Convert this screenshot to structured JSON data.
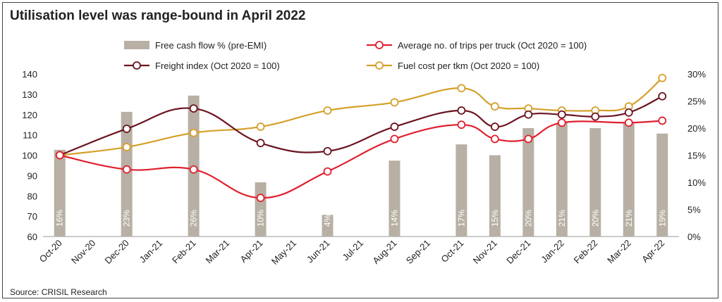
{
  "header": {
    "title": "Utilisation level was range-bound in April 2022"
  },
  "footer": {
    "source": "Source: CRISIL Research"
  },
  "chart_data": {
    "type": "bar",
    "title": "Utilisation level was range-bound in April 2022",
    "categories": [
      "Oct-20",
      "Nov-20",
      "Dec-20",
      "Jan-21",
      "Feb-21",
      "Mar-21",
      "Apr-21",
      "May-21",
      "Jun-21",
      "Jul-21",
      "Aug-21",
      "Sep-21",
      "Oct-21",
      "Nov-21",
      "Dec-21",
      "Jan-22",
      "Feb-22",
      "Mar-22",
      "Apr-22"
    ],
    "y_left": {
      "range": [
        60,
        140
      ],
      "ticks": [
        60,
        70,
        80,
        90,
        100,
        110,
        120,
        130,
        140
      ]
    },
    "y_right": {
      "range": [
        0,
        30
      ],
      "ticks": [
        "0%",
        "5%",
        "10%",
        "15%",
        "20%",
        "25%",
        "30%"
      ]
    },
    "grid": false,
    "legend_position": "top",
    "series": [
      {
        "name": "Free cash flow % (pre-EMI)",
        "kind": "bar",
        "axis": "right",
        "color": "#b8b0a4",
        "values": [
          16,
          null,
          23,
          null,
          26,
          null,
          10,
          null,
          4,
          null,
          14,
          null,
          17,
          15,
          20,
          21,
          20,
          21,
          19
        ],
        "labels": [
          "16%",
          "",
          "23%",
          "",
          "26%",
          "",
          "10%",
          "",
          "4%",
          "",
          "14%",
          "",
          "17%",
          "15%",
          "20%",
          "21%",
          "20%",
          "21%",
          "19%"
        ]
      },
      {
        "name": "Average no. of trips per truck (Oct 2020 = 100)",
        "kind": "line",
        "axis": "left",
        "color": "#e0202e",
        "values": [
          100,
          null,
          93,
          null,
          93,
          null,
          79,
          null,
          92,
          null,
          108,
          null,
          115,
          108,
          108,
          116,
          null,
          116,
          117
        ]
      },
      {
        "name": "Freight index (Oct 2020 = 100)",
        "kind": "line",
        "axis": "left",
        "color": "#6b1420",
        "values": [
          100,
          null,
          113,
          null,
          123,
          null,
          106,
          null,
          102,
          null,
          114,
          null,
          122,
          114,
          120,
          120,
          119,
          121,
          129
        ]
      },
      {
        "name": "Fuel cost per tkm (Oct 2020 = 100)",
        "kind": "line",
        "axis": "left",
        "color": "#d4a02a",
        "values": [
          100,
          null,
          104,
          null,
          111,
          null,
          114,
          null,
          122,
          null,
          126,
          null,
          133,
          124,
          123,
          122,
          122,
          124,
          138
        ]
      }
    ]
  }
}
